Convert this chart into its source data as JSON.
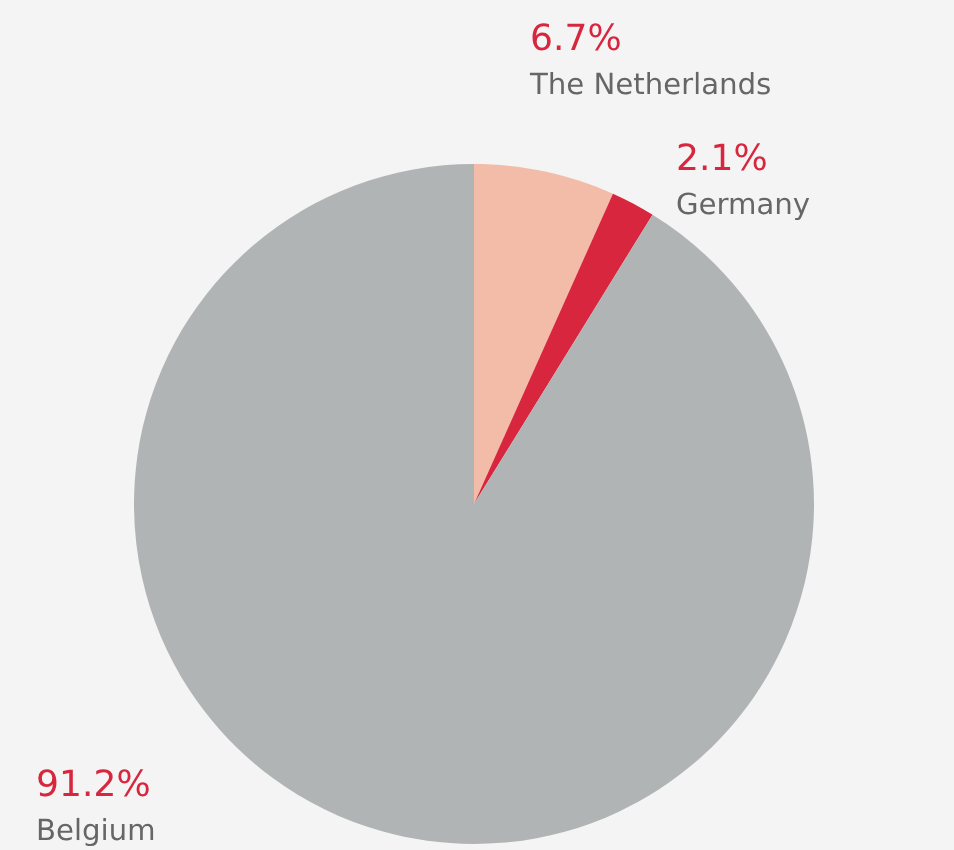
{
  "chart_data": {
    "type": "pie",
    "categories": [
      "The Netherlands",
      "Germany",
      "Belgium"
    ],
    "values": [
      6.7,
      2.1,
      91.2
    ],
    "colors": [
      "#f2bca9",
      "#d7263d",
      "#b0b4b5"
    ],
    "value_labels": [
      "6.7%",
      "2.1%",
      "91.2%"
    ]
  }
}
